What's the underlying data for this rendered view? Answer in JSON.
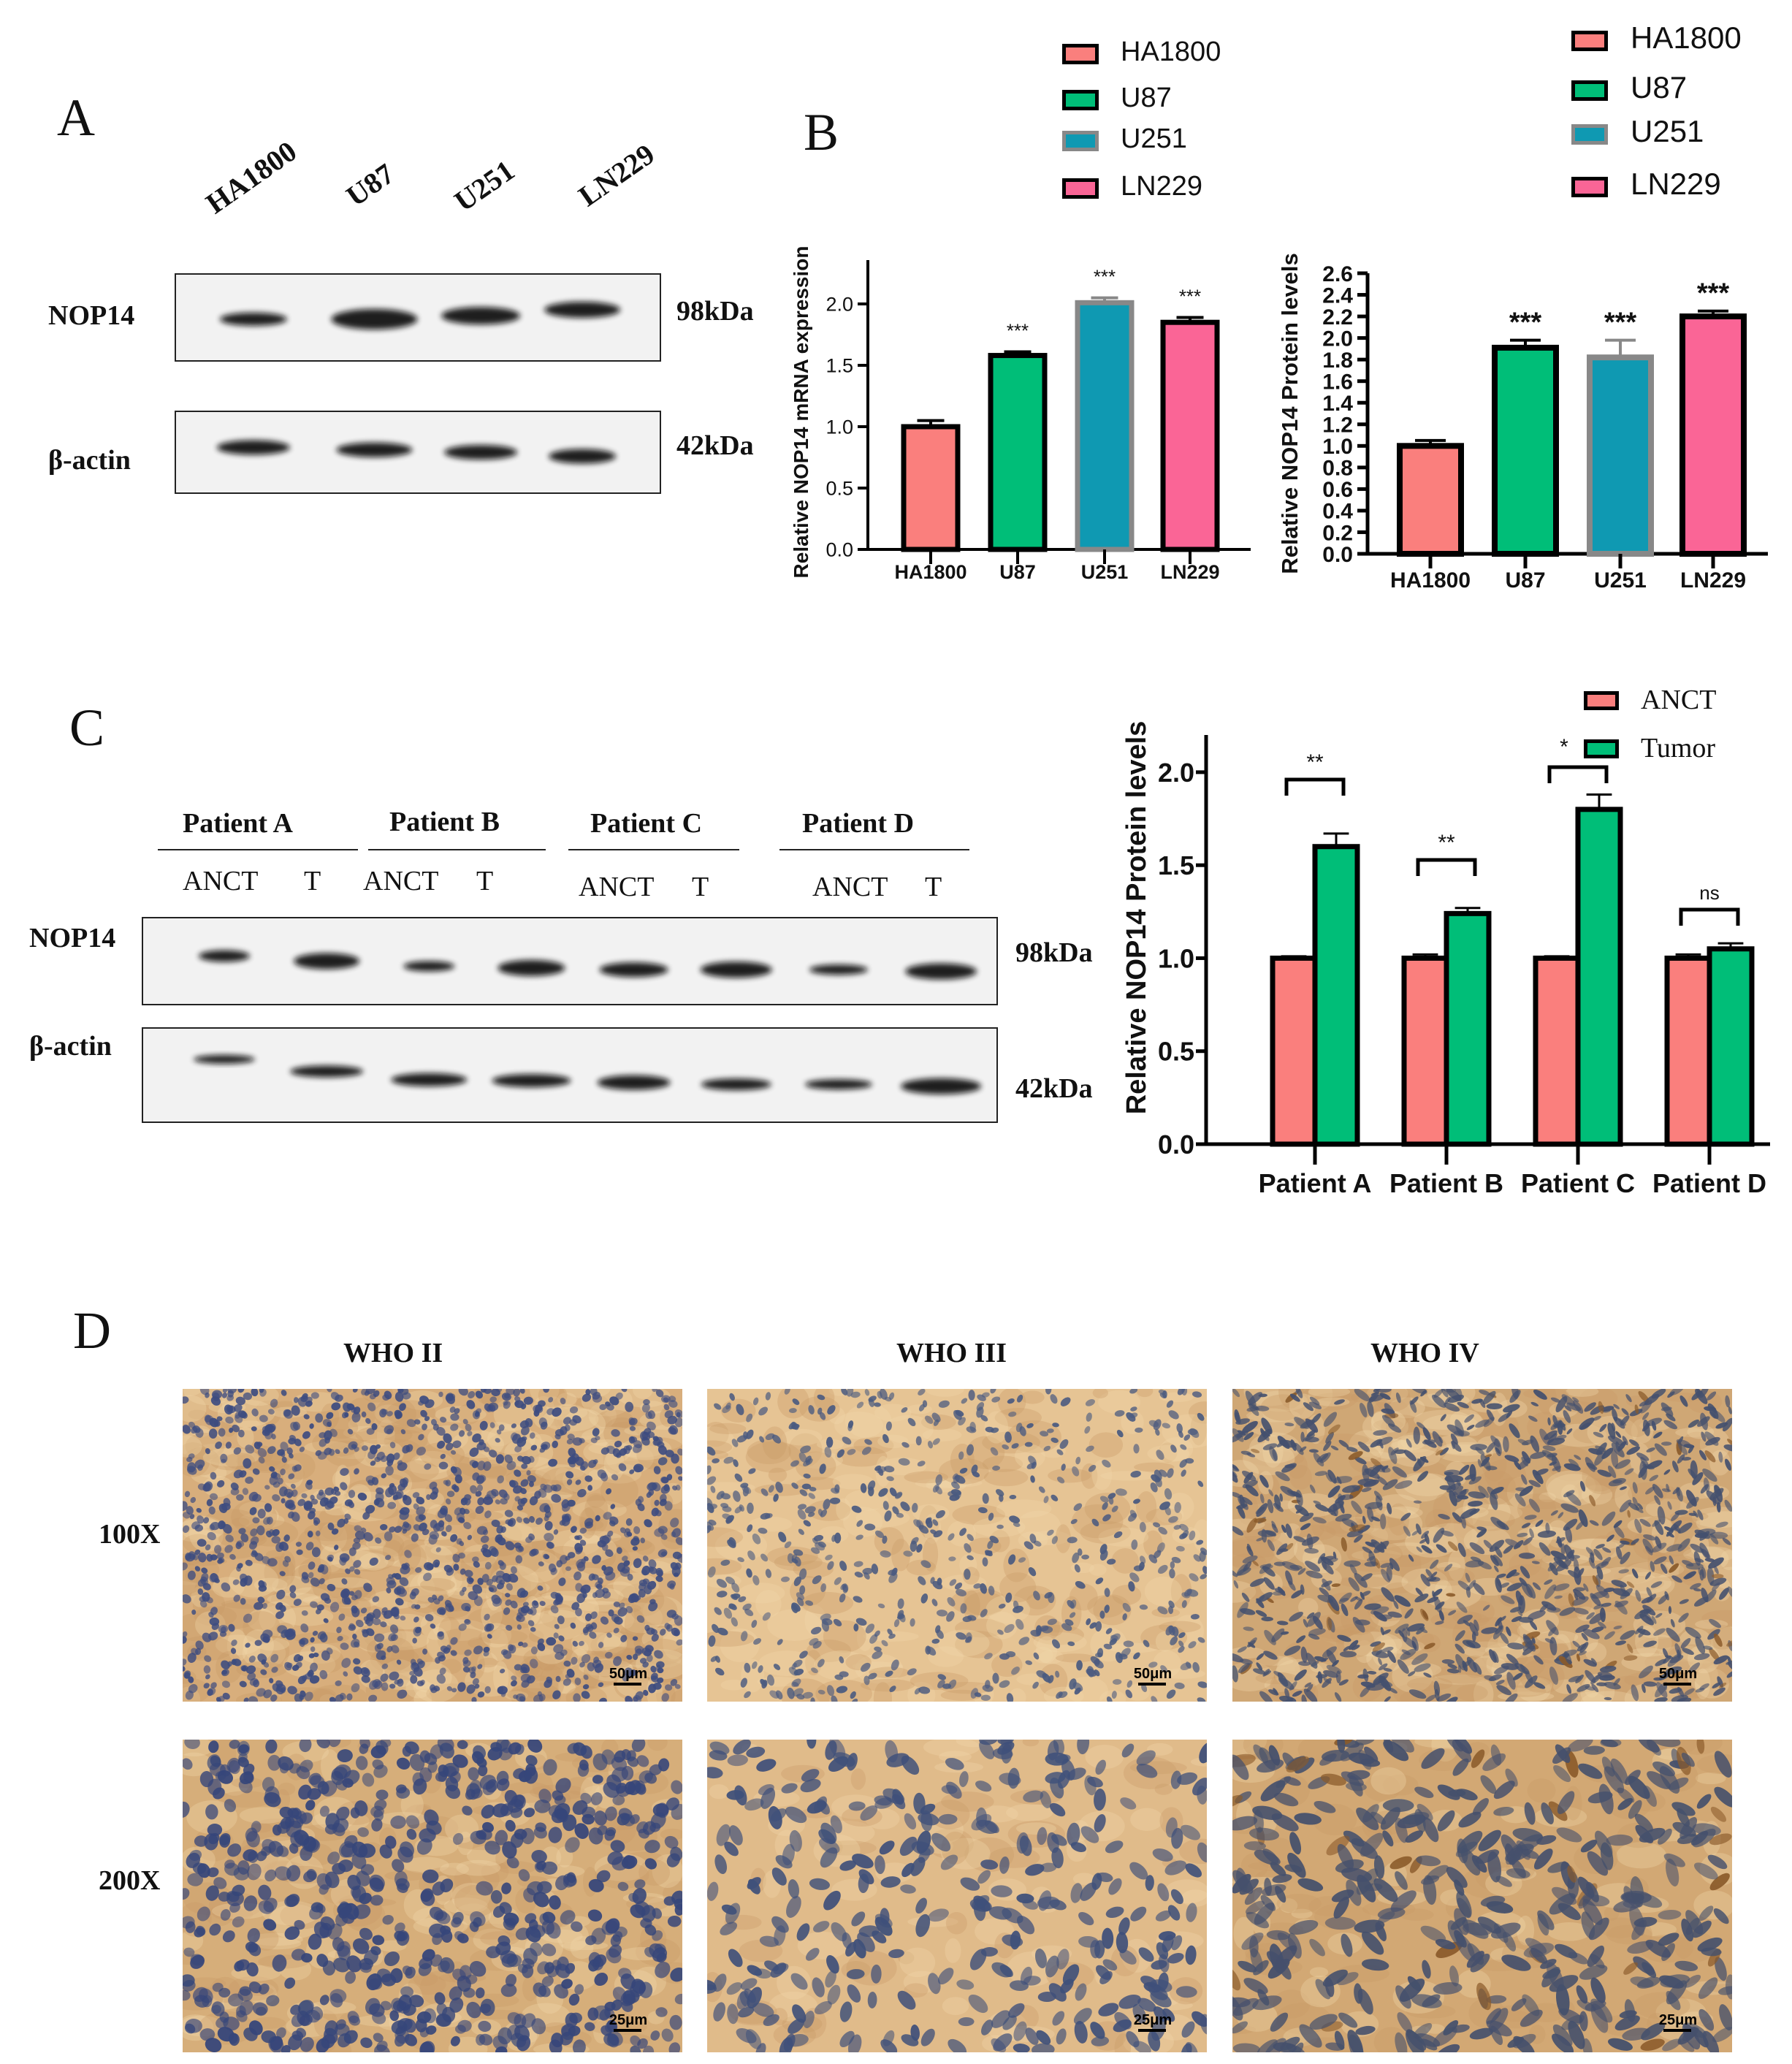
{
  "panels": {
    "a": "A",
    "b": "B",
    "c": "C",
    "d": "D"
  },
  "panel_a": {
    "lanes": [
      "HA1800",
      "U87",
      "U251",
      "LN229"
    ],
    "rows": [
      {
        "label": "NOP14",
        "size": "98kDa"
      },
      {
        "label": "β-actin",
        "size": "42kDa"
      }
    ]
  },
  "panel_b": {
    "legend_mrna": [
      "HA1800",
      "U87",
      "U251",
      "LN229"
    ],
    "legend_protein": [
      "HA1800",
      "U87",
      "U251",
      "LN229"
    ]
  },
  "panel_c": {
    "patients": [
      "Patient A",
      "Patient B",
      "Patient C",
      "Patient D"
    ],
    "lane_labels": [
      "ANCT",
      "T"
    ],
    "rows": [
      {
        "label": "NOP14",
        "size": "98kDa"
      },
      {
        "label": "β-actin",
        "size": "42kDa"
      }
    ],
    "legend": [
      "ANCT",
      "Tumor"
    ]
  },
  "panel_d": {
    "columns": [
      "WHO II",
      "WHO III",
      "WHO IV"
    ],
    "rows": [
      "100X",
      "200X"
    ],
    "scale_bars": [
      "50μm",
      "25μm"
    ]
  },
  "colors": {
    "HA1800": "#fa7f7d",
    "U87": "#00be78",
    "U251": "#0f99b2",
    "LN229": "#fa6596",
    "ANCT": "#fa7f7d",
    "Tumor": "#00be78"
  },
  "chart_data": [
    {
      "type": "bar",
      "title": "",
      "xlabel": "",
      "ylabel": "Relative NOP14 mRNA expression",
      "categories": [
        "HA1800",
        "U87",
        "U251",
        "LN229"
      ],
      "values": [
        1.0,
        1.58,
        2.01,
        1.85
      ],
      "errors": [
        0.05,
        0.03,
        0.04,
        0.04
      ],
      "significance": [
        "",
        "***",
        "***",
        "***"
      ],
      "ylim": [
        0,
        2.0
      ],
      "yticks": [
        "0.0",
        "0.5",
        "1.0",
        "1.5",
        "2.0"
      ],
      "legend_position": "top"
    },
    {
      "type": "bar",
      "title": "",
      "xlabel": "",
      "ylabel": "Relative NOP14 Protein levels",
      "categories": [
        "HA1800",
        "U87",
        "U251",
        "LN229"
      ],
      "values": [
        1.0,
        1.91,
        1.82,
        2.2
      ],
      "errors": [
        0.05,
        0.07,
        0.16,
        0.05
      ],
      "significance": [
        "",
        "***",
        "***",
        "***"
      ],
      "ylim": [
        0,
        2.6
      ],
      "yticks": [
        "0.0",
        "0.2",
        "0.4",
        "0.6",
        "0.8",
        "1.0",
        "1.2",
        "1.4",
        "1.6",
        "1.8",
        "2.0",
        "2.2",
        "2.4",
        "2.6"
      ],
      "legend_position": "top-right"
    },
    {
      "type": "bar",
      "title": "",
      "xlabel": "",
      "ylabel": "Relative NOP14 Protein levels",
      "categories": [
        "Patient A",
        "Patient B",
        "Patient C",
        "Patient D"
      ],
      "series": [
        {
          "name": "ANCT",
          "values": [
            1.0,
            1.0,
            1.0,
            1.0
          ],
          "errors": [
            0.01,
            0.02,
            0.01,
            0.02
          ]
        },
        {
          "name": "Tumor",
          "values": [
            1.6,
            1.24,
            1.8,
            1.05
          ],
          "errors": [
            0.07,
            0.03,
            0.08,
            0.03
          ]
        }
      ],
      "significance": [
        "**",
        "**",
        "*",
        "ns"
      ],
      "ylim": [
        0,
        2.2
      ],
      "yticks": [
        "0.0",
        "0.5",
        "1.0",
        "1.5",
        "2.0"
      ],
      "legend_position": "top-right"
    }
  ]
}
